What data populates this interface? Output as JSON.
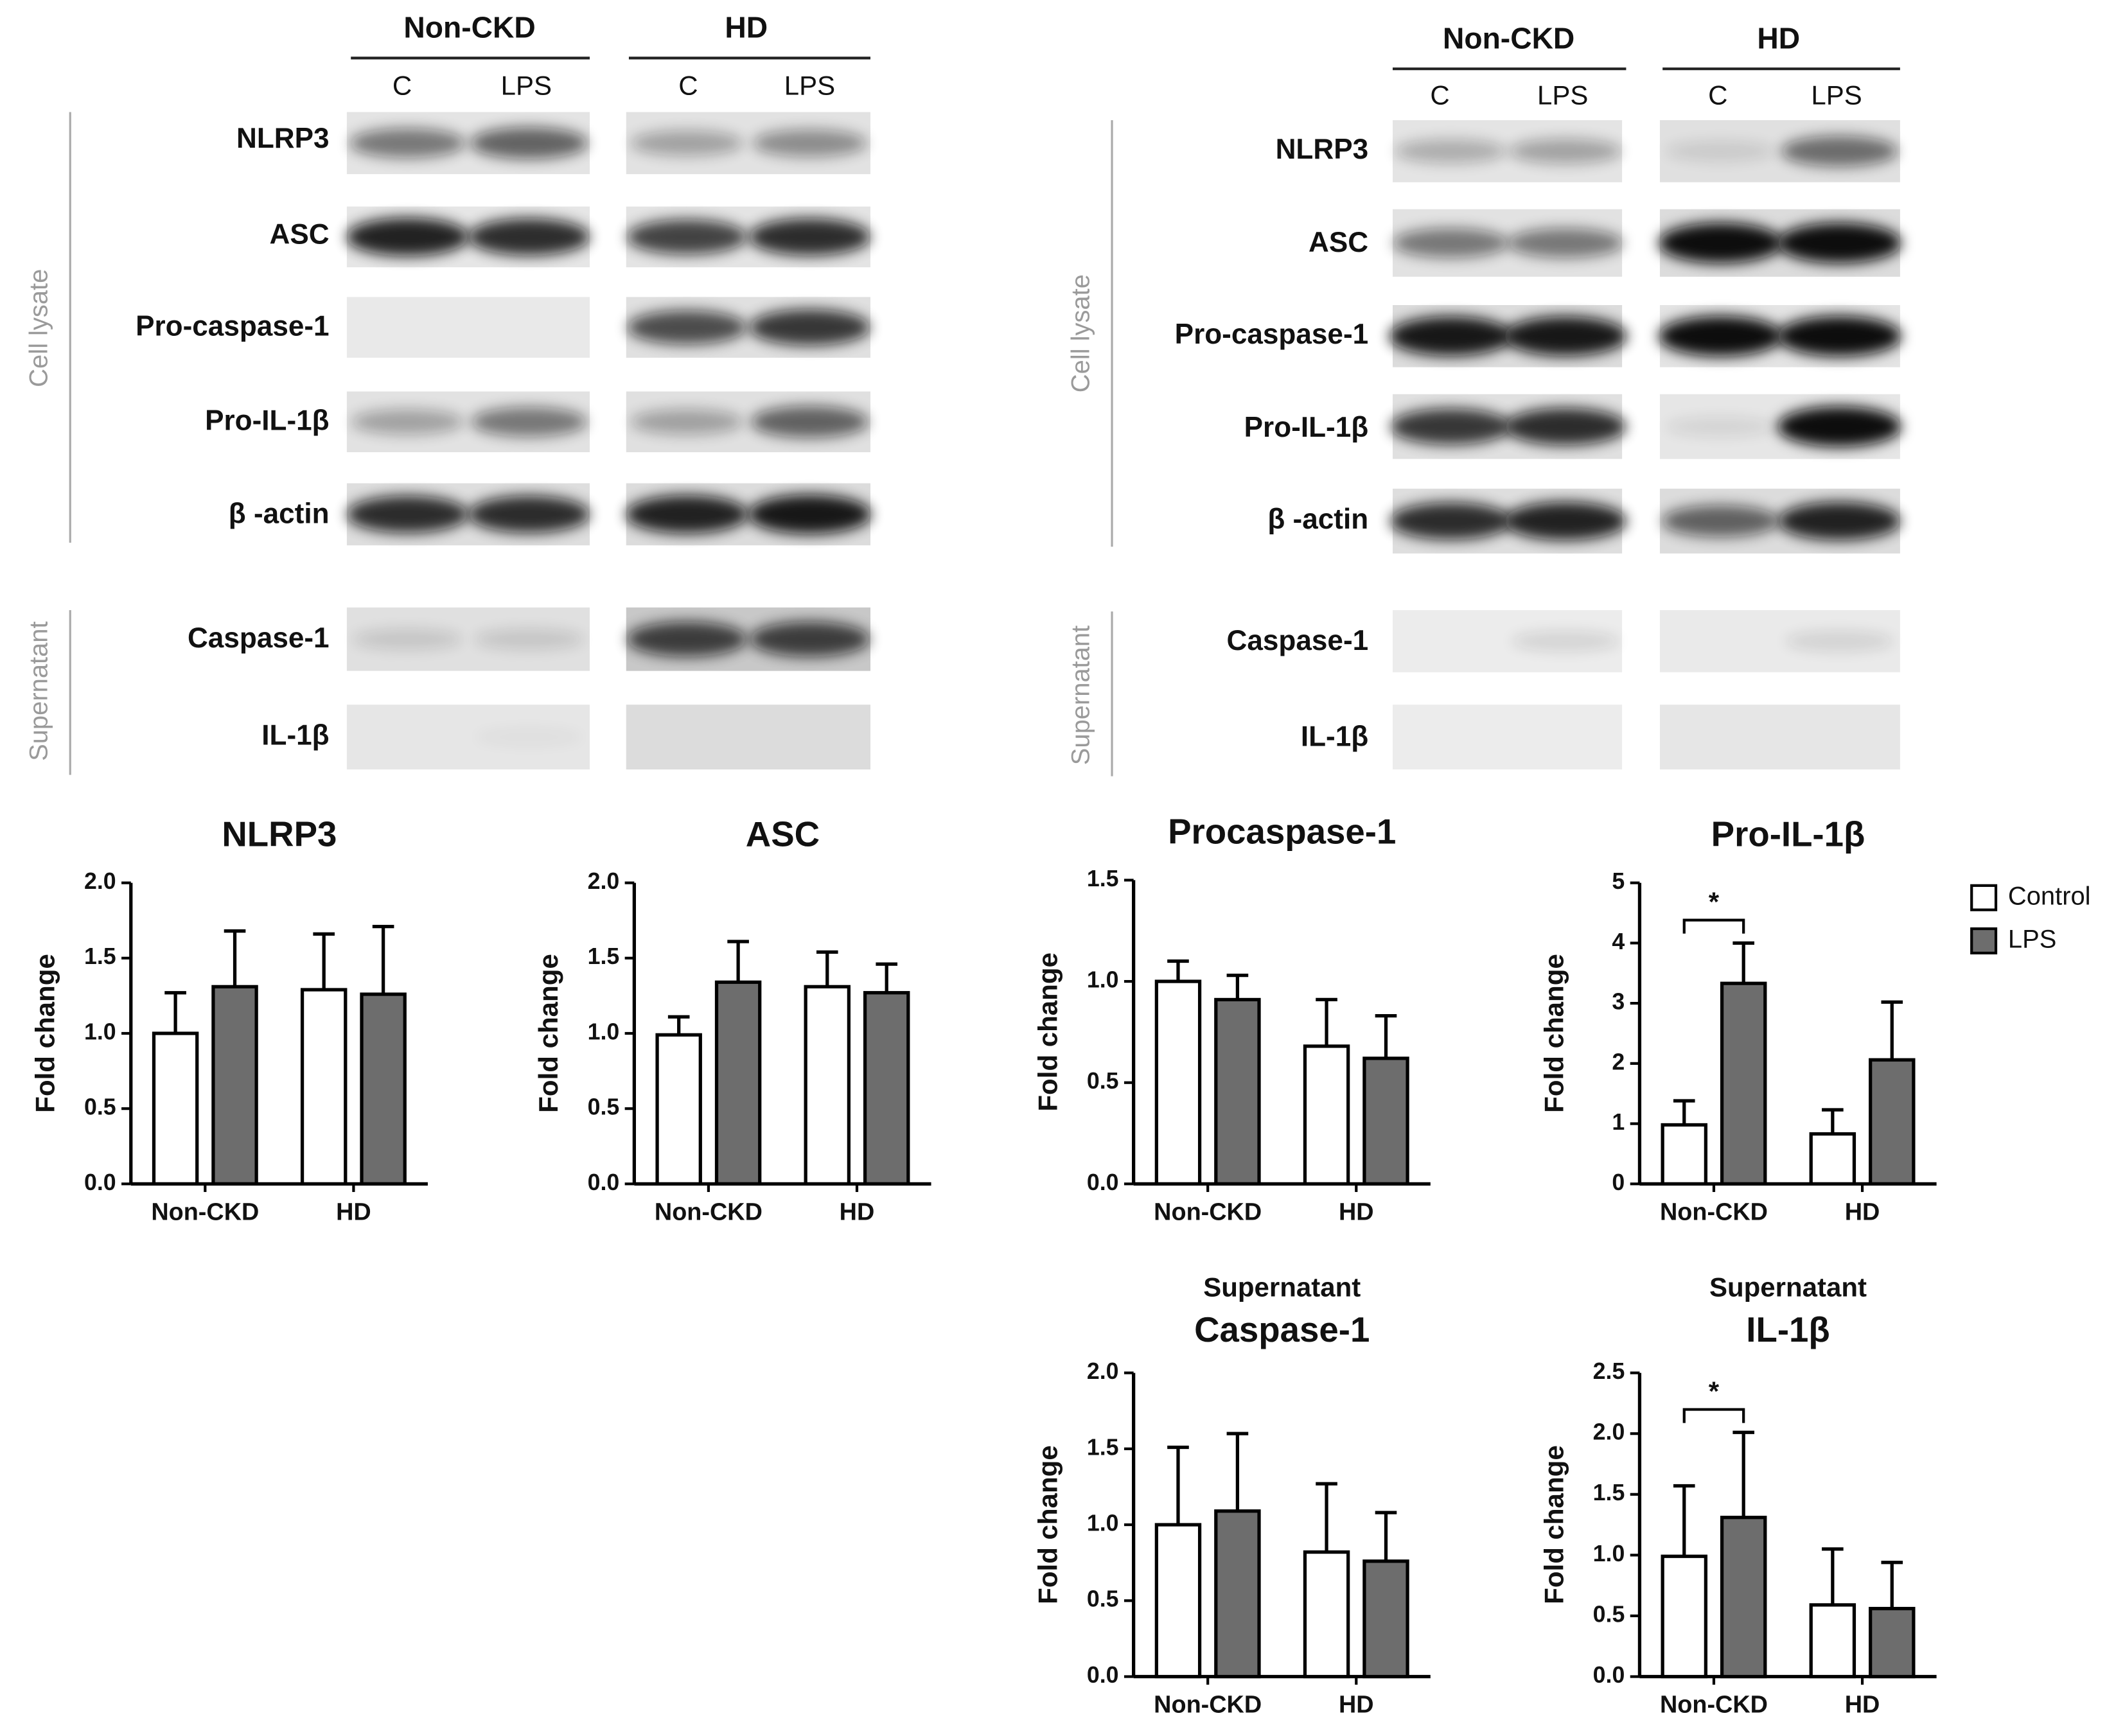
{
  "blots": [
    {
      "groups": [
        "Non-CKD",
        "HD"
      ],
      "lanes": [
        "C",
        "LPS",
        "C",
        "LPS"
      ],
      "sections": [
        "Cell lysate",
        "Supernatant"
      ],
      "proteins": [
        "NLRP3",
        "ASC",
        "Pro-caspase-1",
        "Pro-IL-1β",
        "β -actin",
        "Caspase-1",
        "IL-1β"
      ]
    },
    {
      "groups": [
        "Non-CKD",
        "HD"
      ],
      "lanes": [
        "C",
        "LPS",
        "C",
        "LPS"
      ],
      "sections": [
        "Cell lysate",
        "Supernatant"
      ],
      "proteins": [
        "NLRP3",
        "ASC",
        "Pro-caspase-1",
        "Pro-IL-1β",
        "β -actin",
        "Caspase-1",
        "IL-1β"
      ]
    }
  ],
  "chart_data": [
    {
      "type": "bar",
      "title": "NLRP3",
      "ylabel": "Fold change",
      "categories": [
        "Non-CKD",
        "HD"
      ],
      "series": [
        {
          "color": "#ffffff",
          "values": [
            1.0,
            1.29
          ],
          "errors": [
            0.27,
            0.37
          ]
        },
        {
          "color": "#6d6d6d",
          "values": [
            1.31,
            1.26
          ],
          "errors": [
            0.37,
            0.45
          ]
        }
      ],
      "ylim": [
        0,
        2
      ],
      "yticks": [
        {
          "value": 0,
          "label": "0.0"
        },
        0.5,
        {
          "value": 1,
          "label": "1.0"
        },
        1.5,
        {
          "value": 2,
          "label": "2.0"
        }
      ]
    },
    {
      "type": "bar",
      "title": "ASC",
      "ylabel": "Fold change",
      "categories": [
        "Non-CKD",
        "HD"
      ],
      "series": [
        {
          "color": "#ffffff",
          "values": [
            0.99,
            1.31
          ],
          "errors": [
            0.12,
            0.23
          ]
        },
        {
          "color": "#6d6d6d",
          "values": [
            1.34,
            1.27
          ],
          "errors": [
            0.27,
            0.19
          ]
        }
      ],
      "ylim": [
        0,
        2
      ],
      "yticks": [
        {
          "value": 0,
          "label": "0.0"
        },
        0.5,
        {
          "value": 1,
          "label": "1.0"
        },
        1.5,
        {
          "value": 2,
          "label": "2.0"
        }
      ]
    },
    {
      "type": "bar",
      "title": "Procaspase-1",
      "ylabel": "Fold change",
      "categories": [
        "Non-CKD",
        "HD"
      ],
      "series": [
        {
          "color": "#ffffff",
          "values": [
            1.0,
            0.68
          ],
          "errors": [
            0.1,
            0.23
          ]
        },
        {
          "color": "#6d6d6d",
          "values": [
            0.91,
            0.62
          ],
          "errors": [
            0.12,
            0.21
          ]
        }
      ],
      "ylim": [
        0,
        1.5
      ],
      "yticks": [
        {
          "value": 0,
          "label": "0.0"
        },
        0.5,
        {
          "value": 1,
          "label": "1.0"
        },
        1.5
      ]
    },
    {
      "type": "bar",
      "title": "Pro-IL-1β",
      "ylabel": "Fold change",
      "categories": [
        "Non-CKD",
        "HD"
      ],
      "series": [
        {
          "name": "Control",
          "color": "#ffffff",
          "values": [
            0.98,
            0.83
          ],
          "errors": [
            0.4,
            0.4
          ]
        },
        {
          "name": "LPS",
          "color": "#6d6d6d",
          "values": [
            3.33,
            2.06
          ],
          "errors": [
            0.67,
            0.96
          ]
        }
      ],
      "ylim": [
        0,
        5
      ],
      "yticks": [
        0,
        1,
        2,
        3,
        4,
        5
      ],
      "annotations": [
        "*"
      ],
      "legend": "right"
    },
    {
      "type": "bar",
      "subtitle": "Supernatant",
      "title": "Caspase-1",
      "ylabel": "Fold change",
      "categories": [
        "Non-CKD",
        "HD"
      ],
      "series": [
        {
          "color": "#ffffff",
          "values": [
            1.0,
            0.82
          ],
          "errors": [
            0.51,
            0.45
          ]
        },
        {
          "color": "#6d6d6d",
          "values": [
            1.09,
            0.76
          ],
          "errors": [
            0.51,
            0.32
          ]
        }
      ],
      "ylim": [
        0,
        2
      ],
      "yticks": [
        {
          "value": 0,
          "label": "0.0"
        },
        0.5,
        {
          "value": 1,
          "label": "1.0"
        },
        1.5,
        {
          "value": 2,
          "label": "2.0"
        }
      ]
    },
    {
      "type": "bar",
      "subtitle": "Supernatant",
      "title": "IL-1β",
      "ylabel": "Fold change",
      "categories": [
        "Non-CKD",
        "HD"
      ],
      "series": [
        {
          "color": "#ffffff",
          "values": [
            0.99,
            0.59
          ],
          "errors": [
            0.58,
            0.46
          ]
        },
        {
          "color": "#6d6d6d",
          "values": [
            1.31,
            0.56
          ],
          "errors": [
            0.7,
            0.38
          ]
        }
      ],
      "ylim": [
        0,
        2.5
      ],
      "yticks": [
        {
          "value": 0,
          "label": "0.0"
        },
        0.5,
        {
          "value": 1,
          "label": "1.0"
        },
        1.5,
        {
          "value": 2,
          "label": "2.0"
        },
        2.5
      ],
      "annotations": [
        "*"
      ]
    }
  ]
}
